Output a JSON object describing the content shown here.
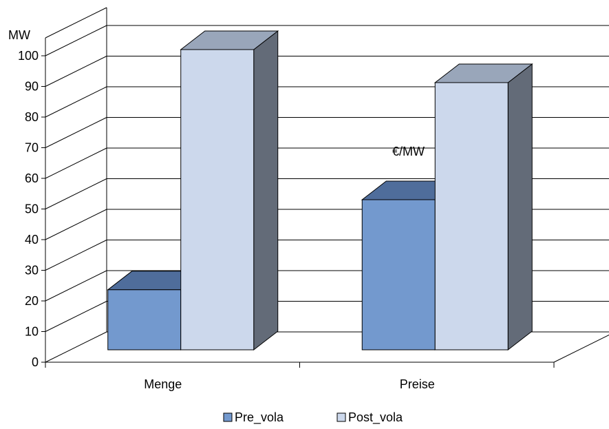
{
  "chart_data": {
    "type": "bar",
    "categories": [
      "Menge",
      "Preise"
    ],
    "series": [
      {
        "name": "Pre_vola",
        "values": [
          20,
          50
        ],
        "color": "#7399CE"
      },
      {
        "name": "Post_vola",
        "values": [
          100,
          89
        ],
        "color": "#CCD8EC"
      }
    ],
    "ylim": [
      0,
      100
    ],
    "yticks": [
      0,
      10,
      20,
      30,
      40,
      50,
      60,
      70,
      80,
      90,
      100
    ],
    "ylabel": "MW",
    "annotation": "€/MW",
    "grid": true,
    "legend_position": "bottom",
    "style": "3d-column"
  }
}
